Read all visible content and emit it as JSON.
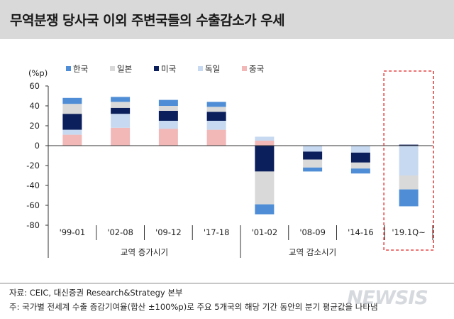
{
  "title": "무역분쟁 당사국 이외 주변국들의 수출감소가 우세",
  "chart_data": {
    "type": "bar",
    "stacked": true,
    "ylabel": "(%p)",
    "ylim": [
      -80,
      60
    ],
    "yticks": [
      60,
      40,
      20,
      0,
      -20,
      -40,
      -60,
      -80
    ],
    "categories": [
      "'99-01",
      "'02-08",
      "'09-12",
      "'17-18",
      "'01-02",
      "'08-09",
      "'14-16",
      "'19.1Q~"
    ],
    "groups": [
      {
        "label": "교역 증가시기",
        "categories": [
          "'99-01",
          "'02-08",
          "'09-12",
          "'17-18"
        ]
      },
      {
        "label": "교역 감소시기",
        "categories": [
          "'01-02",
          "'08-09",
          "'14-16"
        ]
      }
    ],
    "highlight": "'19.1Q~",
    "legend_position": "top",
    "series": [
      {
        "name": "중국",
        "color": "#f2b8b8",
        "values": [
          11,
          18,
          17,
          16,
          5,
          0,
          0,
          0
        ]
      },
      {
        "name": "독일",
        "color": "#c6d9f0",
        "values": [
          5,
          14,
          8,
          9,
          4,
          -6,
          -7,
          -30
        ]
      },
      {
        "name": "미국",
        "color": "#0b1f5c",
        "values": [
          16,
          6,
          10,
          9,
          -26,
          -8,
          -10,
          1
        ]
      },
      {
        "name": "일본",
        "color": "#d9d9d9",
        "values": [
          10,
          6,
          5,
          5,
          -33,
          -8,
          -6,
          -14
        ]
      },
      {
        "name": "한국",
        "color": "#4f8ed6",
        "values": [
          6,
          5,
          6,
          5,
          -10,
          -4,
          -5,
          -17
        ]
      }
    ],
    "legend": [
      {
        "name": "한국",
        "color": "#4f8ed6"
      },
      {
        "name": "일본",
        "color": "#d9d9d9"
      },
      {
        "name": "미국",
        "color": "#0b1f5c"
      },
      {
        "name": "독일",
        "color": "#c6d9f0"
      },
      {
        "name": "중국",
        "color": "#f2b8b8"
      }
    ]
  },
  "source": "자료: CEIC, 대신증권 Research&Strategy 본부",
  "note": "주: 국가별 전세계 수출 증감기여율(합산 ±100%p)로 주요 5개국의 해당 기간 동안의 분기 평균값을 나타냄",
  "watermark": "NEWSIS",
  "colors": {
    "title_bg": "#d9d9d9",
    "highlight_box": "#e02020"
  }
}
